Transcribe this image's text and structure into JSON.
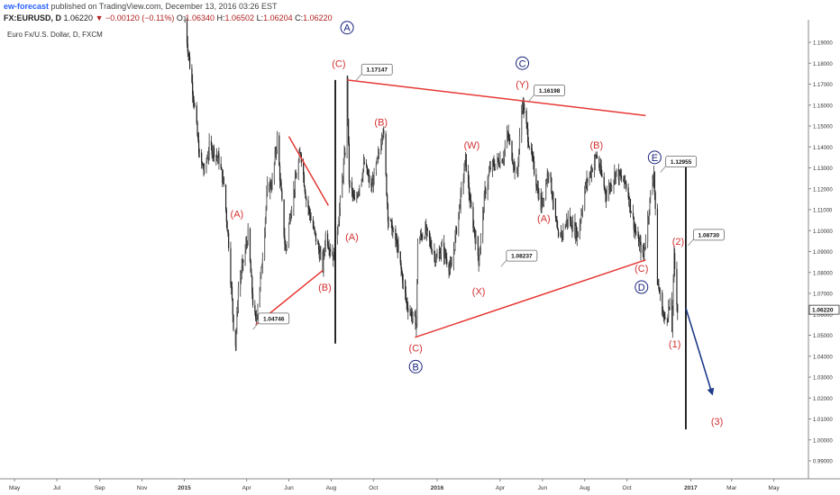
{
  "header": {
    "author": "ew-forecast",
    "published_text": "published on TradingView.com, December 13, 2016 03:26 EST",
    "symbol_line": "FX:EURUSD, D",
    "last": "1.06220",
    "change": "▼ −0.00120 (−0.11%)",
    "open_label": "O:",
    "open": "1.06340",
    "high_label": "H:",
    "high": "1.06502",
    "low_label": "L:",
    "low": "1.06204",
    "close_label": "C:",
    "close": "1.06220"
  },
  "symbol_title": "Euro Fx/U.S. Dollar, D, FXCM",
  "colors": {
    "wave_red": "#d32f2f",
    "wave_blue": "#1a237e",
    "line_red": "#e53935",
    "arrow_blue": "#1e3a8a",
    "candle": "#333333"
  },
  "chart_data": {
    "type": "candlestick",
    "y_range": [
      0.983,
      1.203
    ],
    "x_range": [
      "2014-04-10",
      "2017-06-20"
    ],
    "y_ticks": [
      "1.19000",
      "1.18000",
      "1.17000",
      "1.16000",
      "1.15000",
      "1.14000",
      "1.13000",
      "1.12000",
      "1.11000",
      "1.10000",
      "1.09000",
      "1.08000",
      "1.07000",
      "1.06000",
      "1.05000",
      "1.04000",
      "1.03000",
      "1.02000",
      "1.01000",
      "1.00000",
      "0.99000"
    ],
    "x_ticks": [
      {
        "label": "May",
        "date": "2014-05-01"
      },
      {
        "label": "Jul",
        "date": "2014-07-01"
      },
      {
        "label": "Sep",
        "date": "2014-09-01"
      },
      {
        "label": "Nov",
        "date": "2014-11-01"
      },
      {
        "label": "2015",
        "date": "2015-01-01"
      },
      {
        "label": "Apr",
        "date": "2015-04-01"
      },
      {
        "label": "Jun",
        "date": "2015-06-01"
      },
      {
        "label": "Aug",
        "date": "2015-08-01"
      },
      {
        "label": "Oct",
        "date": "2015-10-01"
      },
      {
        "label": "2016",
        "date": "2016-01-01"
      },
      {
        "label": "Apr",
        "date": "2016-04-01"
      },
      {
        "label": "Jun",
        "date": "2016-06-01"
      },
      {
        "label": "Aug",
        "date": "2016-08-01"
      },
      {
        "label": "Oct",
        "date": "2016-10-01"
      },
      {
        "label": "2017",
        "date": "2017-01-01"
      },
      {
        "label": "Mar",
        "date": "2017-03-01"
      },
      {
        "label": "May",
        "date": "2017-05-01"
      }
    ],
    "last_price": "1.06220",
    "price_path": [
      [
        "2015-01-02",
        1.2
      ],
      [
        "2015-01-08",
        1.182
      ],
      [
        "2015-01-15",
        1.162
      ],
      [
        "2015-01-23",
        1.135
      ],
      [
        "2015-01-30",
        1.128
      ],
      [
        "2015-02-06",
        1.14
      ],
      [
        "2015-02-13",
        1.138
      ],
      [
        "2015-02-20",
        1.134
      ],
      [
        "2015-02-27",
        1.122
      ],
      [
        "2015-03-06",
        1.094
      ],
      [
        "2015-03-13",
        1.055
      ],
      [
        "2015-03-16",
        1.046
      ],
      [
        "2015-03-20",
        1.072
      ],
      [
        "2015-03-27",
        1.085
      ],
      [
        "2015-04-03",
        1.098
      ],
      [
        "2015-04-10",
        1.066
      ],
      [
        "2015-04-14",
        1.056
      ],
      [
        "2015-04-22",
        1.08
      ],
      [
        "2015-05-01",
        1.12
      ],
      [
        "2015-05-08",
        1.123
      ],
      [
        "2015-05-15",
        1.144
      ],
      [
        "2015-05-27",
        1.09
      ],
      [
        "2015-06-05",
        1.113
      ],
      [
        "2015-06-18",
        1.138
      ],
      [
        "2015-06-26",
        1.115
      ],
      [
        "2015-07-07",
        1.1
      ],
      [
        "2015-07-20",
        1.083
      ],
      [
        "2015-07-24",
        1.098
      ],
      [
        "2015-08-05",
        1.087
      ],
      [
        "2015-08-14",
        1.113
      ],
      [
        "2015-08-21",
        1.138
      ],
      [
        "2015-08-24",
        1.171
      ],
      [
        "2015-08-27",
        1.123
      ],
      [
        "2015-09-04",
        1.113
      ],
      [
        "2015-09-18",
        1.132
      ],
      [
        "2015-09-28",
        1.12
      ],
      [
        "2015-10-08",
        1.135
      ],
      [
        "2015-10-15",
        1.15
      ],
      [
        "2015-10-22",
        1.107
      ],
      [
        "2015-11-04",
        1.093
      ],
      [
        "2015-11-18",
        1.065
      ],
      [
        "2015-12-02",
        1.055
      ],
      [
        "2015-12-04",
        1.095
      ],
      [
        "2015-12-15",
        1.1
      ],
      [
        "2015-12-31",
        1.086
      ],
      [
        "2016-01-08",
        1.092
      ],
      [
        "2016-01-21",
        1.081
      ],
      [
        "2016-02-11",
        1.134
      ],
      [
        "2016-02-18",
        1.112
      ],
      [
        "2016-03-01",
        1.086
      ],
      [
        "2016-03-10",
        1.118
      ],
      [
        "2016-03-18",
        1.13
      ],
      [
        "2016-04-05",
        1.135
      ],
      [
        "2016-04-12",
        1.146
      ],
      [
        "2016-04-25",
        1.125
      ],
      [
        "2016-05-03",
        1.162
      ],
      [
        "2016-05-12",
        1.143
      ],
      [
        "2016-05-30",
        1.111
      ],
      [
        "2016-06-10",
        1.13
      ],
      [
        "2016-06-24",
        1.095
      ],
      [
        "2016-07-08",
        1.106
      ],
      [
        "2016-07-22",
        1.098
      ],
      [
        "2016-08-02",
        1.121
      ],
      [
        "2016-08-18",
        1.136
      ],
      [
        "2016-09-01",
        1.117
      ],
      [
        "2016-09-15",
        1.128
      ],
      [
        "2016-09-30",
        1.122
      ],
      [
        "2016-10-14",
        1.098
      ],
      [
        "2016-10-25",
        1.088
      ],
      [
        "2016-11-03",
        1.114
      ],
      [
        "2016-11-09",
        1.129
      ],
      [
        "2016-11-14",
        1.076
      ],
      [
        "2016-11-24",
        1.057
      ],
      [
        "2016-12-02",
        1.064
      ],
      [
        "2016-12-05",
        1.052
      ],
      [
        "2016-12-08",
        1.087
      ],
      [
        "2016-12-13",
        1.062
      ]
    ],
    "lines": [
      {
        "kind": "trend-red",
        "from": [
          "2015-08-24",
          1.172
        ],
        "to": [
          "2016-10-28",
          1.155
        ]
      },
      {
        "kind": "trend-red",
        "from": [
          "2015-11-30",
          1.049
        ],
        "to": [
          "2016-10-28",
          1.086
        ]
      },
      {
        "kind": "trend-red",
        "from": [
          "2015-04-14",
          1.055
        ],
        "to": [
          "2015-07-20",
          1.081
        ]
      },
      {
        "kind": "trend-red",
        "from": [
          "2015-06-01",
          1.145
        ],
        "to": [
          "2015-07-28",
          1.112
        ]
      },
      {
        "kind": "vertical-black",
        "from": [
          "2015-08-07",
          1.046
        ],
        "to": [
          "2015-08-07",
          1.172
        ]
      },
      {
        "kind": "vertical-black",
        "from": [
          "2016-12-25",
          1.005
        ],
        "to": [
          "2016-12-25",
          1.131
        ]
      },
      {
        "kind": "arrow-blue",
        "from": [
          "2016-12-25",
          1.063
        ],
        "to": [
          "2017-02-01",
          1.022
        ]
      }
    ],
    "labels": [
      {
        "text": "(A)",
        "color": "red",
        "at": [
          "2015-03-18",
          1.108
        ]
      },
      {
        "text": "(B)",
        "color": "red",
        "at": [
          "2015-07-23",
          1.073
        ]
      },
      {
        "text": "(C)",
        "color": "red",
        "at": [
          "2015-08-12",
          1.18
        ]
      },
      {
        "text": "A",
        "color": "blue-circle",
        "at": [
          "2015-08-24",
          1.197
        ]
      },
      {
        "text": "(A)",
        "color": "red",
        "at": [
          "2015-08-31",
          1.097
        ]
      },
      {
        "text": "(B)",
        "color": "red",
        "at": [
          "2015-10-12",
          1.152
        ]
      },
      {
        "text": "(C)",
        "color": "red",
        "at": [
          "2015-12-01",
          1.044
        ]
      },
      {
        "text": "B",
        "color": "blue-circle",
        "at": [
          "2015-12-01",
          1.035
        ]
      },
      {
        "text": "(W)",
        "color": "red",
        "at": [
          "2016-02-20",
          1.141
        ]
      },
      {
        "text": "(X)",
        "color": "red",
        "at": [
          "2016-03-01",
          1.071
        ]
      },
      {
        "text": "(Y)",
        "color": "red",
        "at": [
          "2016-05-03",
          1.17
        ]
      },
      {
        "text": "C",
        "color": "blue-circle",
        "at": [
          "2016-05-03",
          1.18
        ]
      },
      {
        "text": "(A)",
        "color": "red",
        "at": [
          "2016-06-03",
          1.106
        ]
      },
      {
        "text": "(B)",
        "color": "red",
        "at": [
          "2016-08-18",
          1.141
        ]
      },
      {
        "text": "(C)",
        "color": "red",
        "at": [
          "2016-10-22",
          1.082
        ]
      },
      {
        "text": "D",
        "color": "blue-circle",
        "at": [
          "2016-10-22",
          1.073
        ]
      },
      {
        "text": "E",
        "color": "blue-circle",
        "at": [
          "2016-11-10",
          1.135
        ]
      },
      {
        "text": "(2)",
        "color": "red",
        "at": [
          "2016-12-14",
          1.095
        ]
      },
      {
        "text": "(1)",
        "color": "red",
        "at": [
          "2016-12-09",
          1.046
        ]
      },
      {
        "text": "(3)",
        "color": "red",
        "at": [
          "2017-02-08",
          1.009
        ]
      }
    ],
    "callouts": [
      {
        "text": "1.17147",
        "at": [
          "2015-09-14",
          1.177
        ]
      },
      {
        "text": "1.16198",
        "at": [
          "2016-05-20",
          1.167
        ]
      },
      {
        "text": "1.04746",
        "at": [
          "2015-04-18",
          1.058
        ]
      },
      {
        "text": "1.08237",
        "at": [
          "2016-04-10",
          1.088
        ]
      },
      {
        "text": "1.12955",
        "at": [
          "2016-11-26",
          1.133
        ]
      },
      {
        "text": "1.08730",
        "at": [
          "2017-01-05",
          1.098
        ]
      }
    ]
  }
}
